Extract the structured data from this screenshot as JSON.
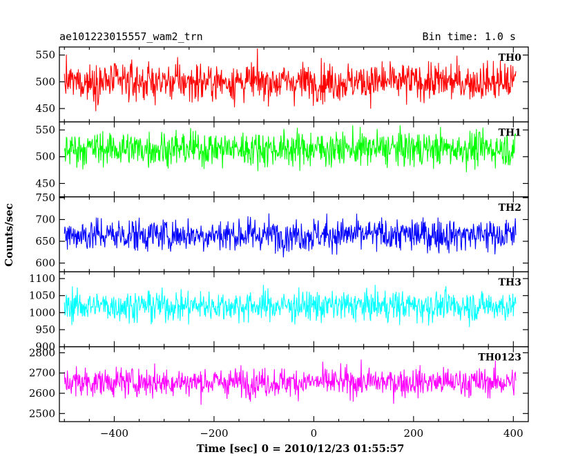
{
  "header": {
    "title": "ae101223015557_wam2_trn",
    "bin_time": "Bin time: 1.0 s"
  },
  "chart_data": {
    "type": "line",
    "title": "ae101223015557_wam2_trn",
    "subtitle": "Bin time: 1.0 s",
    "xlabel": "Time [sec] 0 = 2010/12/23 01:55:57",
    "ylabel": "Counts/sec",
    "xlim": [
      -510,
      430
    ],
    "x_ticks": [
      -400,
      -200,
      0,
      200,
      400
    ],
    "x_start": -500,
    "x_end": 405,
    "x_step": 1,
    "panels": [
      {
        "name": "TH0",
        "color": "#ff0000",
        "ylim": [
          425,
          565
        ],
        "y_ticks": [
          450,
          500,
          550
        ],
        "mean": 500,
        "sigma": 25
      },
      {
        "name": "TH1",
        "color": "#00ff00",
        "ylim": [
          425,
          565
        ],
        "y_ticks": [
          450,
          500,
          550
        ],
        "mean": 515,
        "sigma": 23
      },
      {
        "name": "TH2",
        "color": "#0000ff",
        "ylim": [
          580,
          752
        ],
        "y_ticks": [
          600,
          650,
          700,
          750
        ],
        "mean": 665,
        "sigma": 27
      },
      {
        "name": "TH3",
        "color": "#00ffff",
        "ylim": [
          900,
          1120
        ],
        "y_ticks": [
          900,
          950,
          1000,
          1050,
          1100
        ],
        "mean": 1020,
        "sigma": 32
      },
      {
        "name": "TH0123",
        "color": "#ff00ff",
        "ylim": [
          2460,
          2830
        ],
        "y_ticks": [
          2500,
          2600,
          2700,
          2800
        ],
        "mean": 2655,
        "sigma": 50
      }
    ]
  }
}
